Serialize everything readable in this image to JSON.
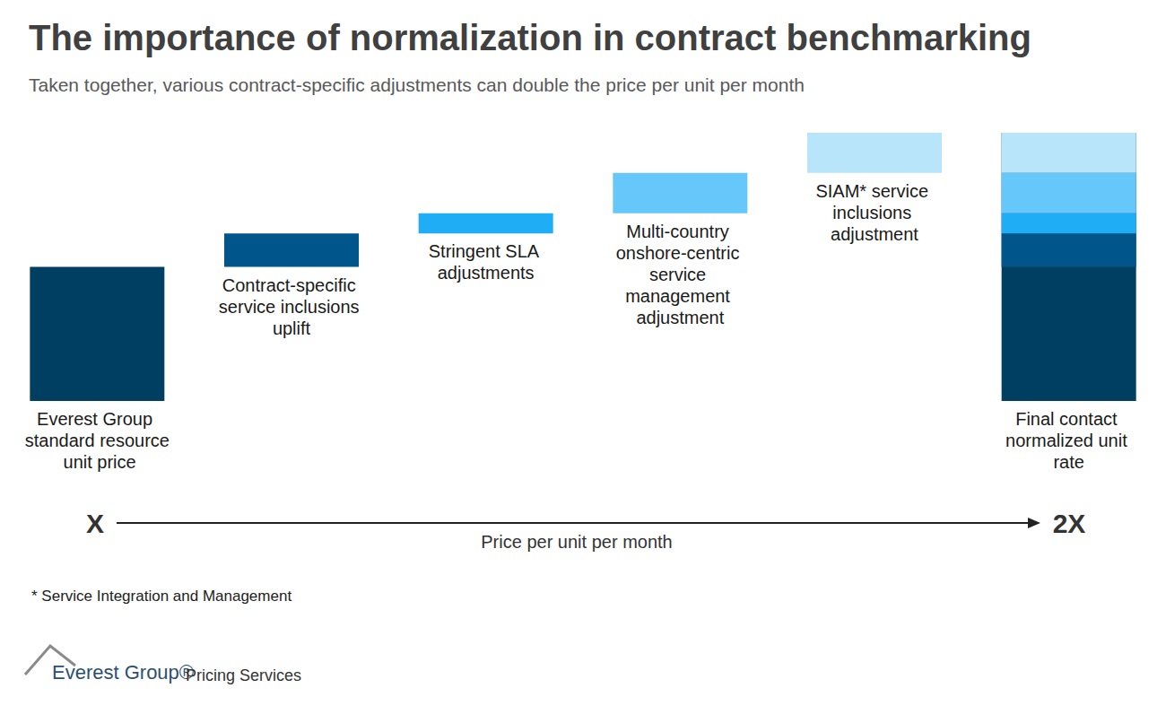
{
  "chart_data": {
    "type": "waterfall",
    "title": "The importance of normalization in contract benchmarking",
    "subtitle": "Taken together, various contract-specific adjustments can double the price per unit per month",
    "categories": [
      "Everest Group standard resource unit price",
      "Contract-specific service inclusions uplift",
      "Stringent SLA adjustments",
      "Multi-country onshore-centric service management adjustment",
      "SIAM* service inclusions adjustment",
      "Final contact normalized unit rate"
    ],
    "values": [
      1,
      0.25,
      0.15,
      0.3,
      0.3,
      2
    ],
    "colors": [
      "#013F62",
      "#00568A",
      "#1FAEF5",
      "#66C8FA",
      "#B9E5FB",
      "#013F62"
    ],
    "ylim": [
      0,
      2
    ],
    "grid": false,
    "tick_labels": false,
    "x_arrow": {
      "start": "X",
      "end": "2X",
      "label": "Price per unit per month"
    },
    "footnote": "* Service Integration and Management",
    "logo": "Everest Group®",
    "logo_subtitle": "Pricing Services"
  }
}
